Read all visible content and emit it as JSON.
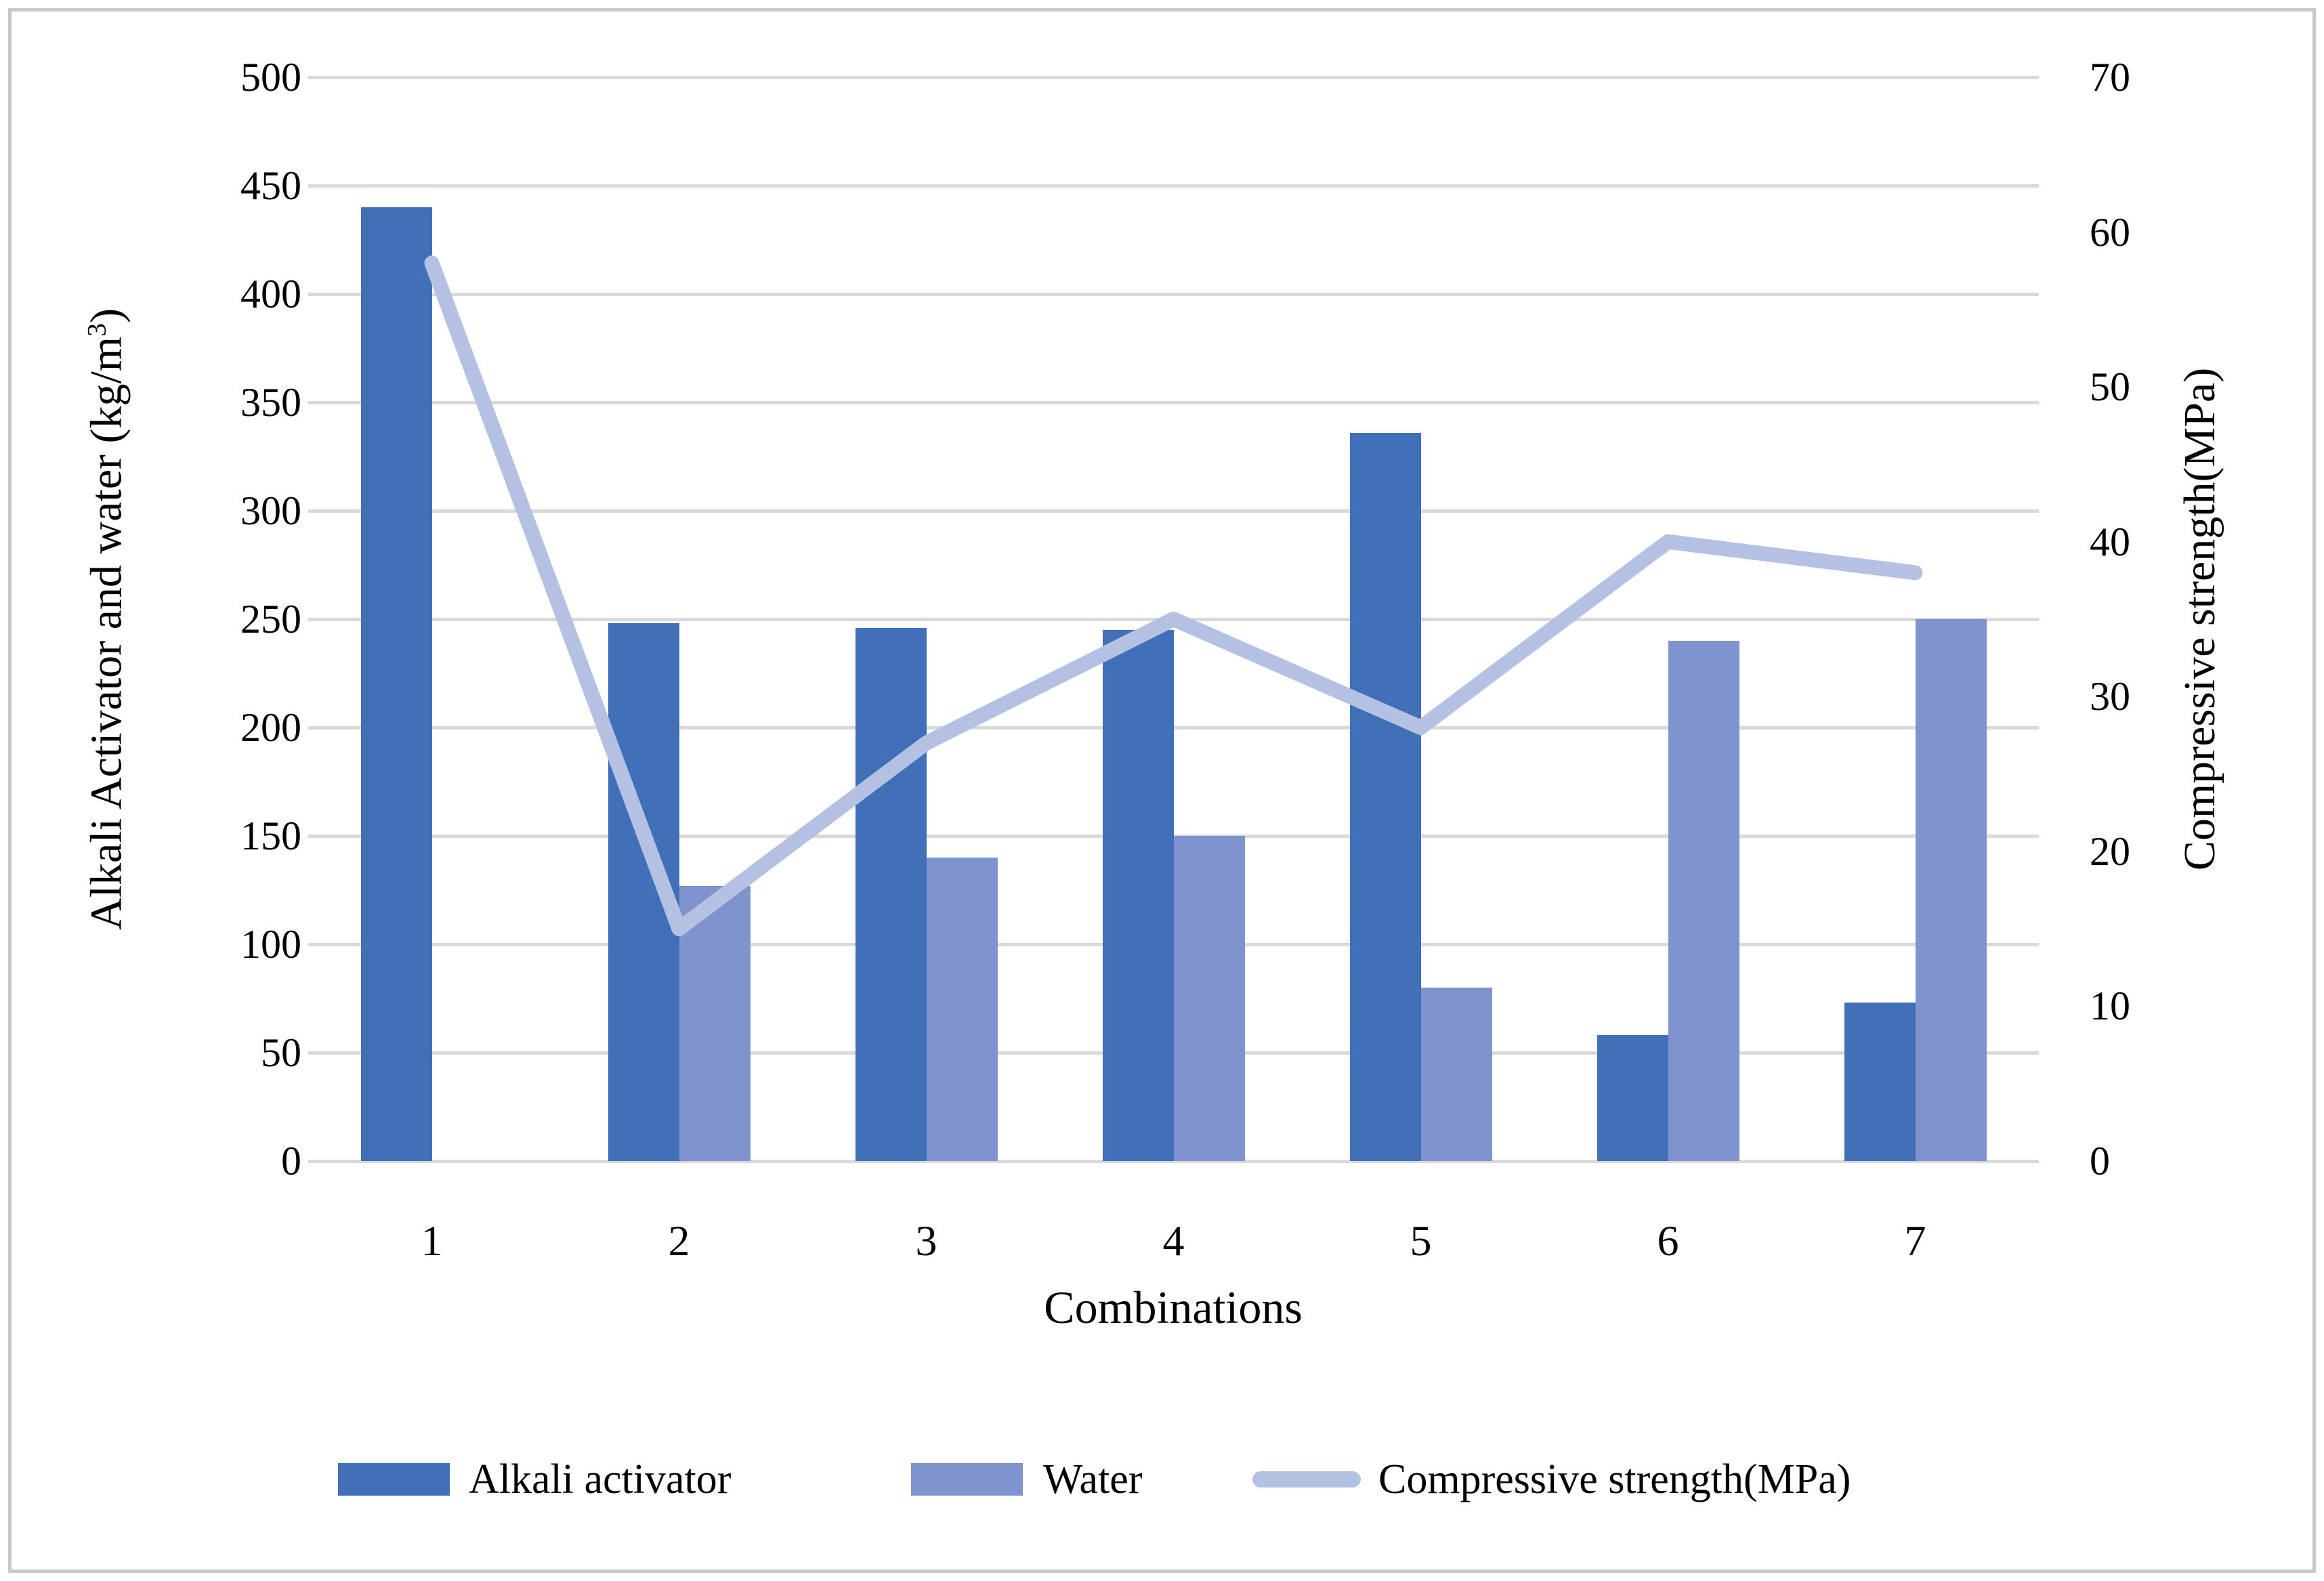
{
  "figure": {
    "background_color": "#ffffff",
    "border_color": "#c9c9c9"
  },
  "left_axis": {
    "title_pre": "Alkali Activator and water (kg/m",
    "title_sup": "3",
    "title_post": ")",
    "ticks": [
      0,
      50,
      100,
      150,
      200,
      250,
      300,
      350,
      400,
      450,
      500
    ],
    "min": 0,
    "max": 500
  },
  "right_axis": {
    "title": "Compressive strength(MPa)",
    "ticks": [
      0,
      10,
      20,
      30,
      40,
      50,
      60,
      70
    ],
    "min": 0,
    "max": 70
  },
  "x_axis": {
    "title": "Combinations",
    "categories": [
      "1",
      "2",
      "3",
      "4",
      "5",
      "6",
      "7"
    ]
  },
  "legend": {
    "items": [
      {
        "label": "Alkali activator",
        "color": "#4170b8",
        "type": "bar"
      },
      {
        "label": "Water",
        "color": "#7f94cf",
        "type": "bar"
      },
      {
        "label": "Compressive strength(MPa)",
        "color": "#b5c1e3",
        "type": "line"
      }
    ]
  },
  "colors": {
    "alkali_bar": "#4170b8",
    "water_bar": "#7f94cf",
    "strength_line": "#b5c1e3",
    "gridline": "#d9d9d9"
  },
  "chart_data": {
    "type": "bar+line",
    "categories": [
      "1",
      "2",
      "3",
      "4",
      "5",
      "6",
      "7"
    ],
    "bar_series": [
      {
        "name": "Alkali activator",
        "color": "#4170b8",
        "axis": "left",
        "values": [
          440,
          248,
          246,
          245,
          336,
          58,
          73
        ]
      },
      {
        "name": "Water",
        "color": "#7f94cf",
        "axis": "left",
        "values": [
          0,
          127,
          140,
          150,
          80,
          240,
          250
        ]
      }
    ],
    "line_series": [
      {
        "name": "Compressive strength(MPa)",
        "color": "#b5c1e3",
        "axis": "right",
        "values": [
          58,
          15,
          27,
          35,
          28,
          40,
          38
        ]
      }
    ],
    "title": "",
    "xlabel": "Combinations",
    "left_ylabel": "Alkali Activator and water (kg/m³)",
    "right_ylabel": "Compressive strength(MPa)",
    "left_ylim": [
      0,
      500
    ],
    "left_tick_step": 50,
    "right_ylim": [
      0,
      70
    ],
    "right_tick_step": 10,
    "grid": true,
    "legend_position": "bottom"
  }
}
